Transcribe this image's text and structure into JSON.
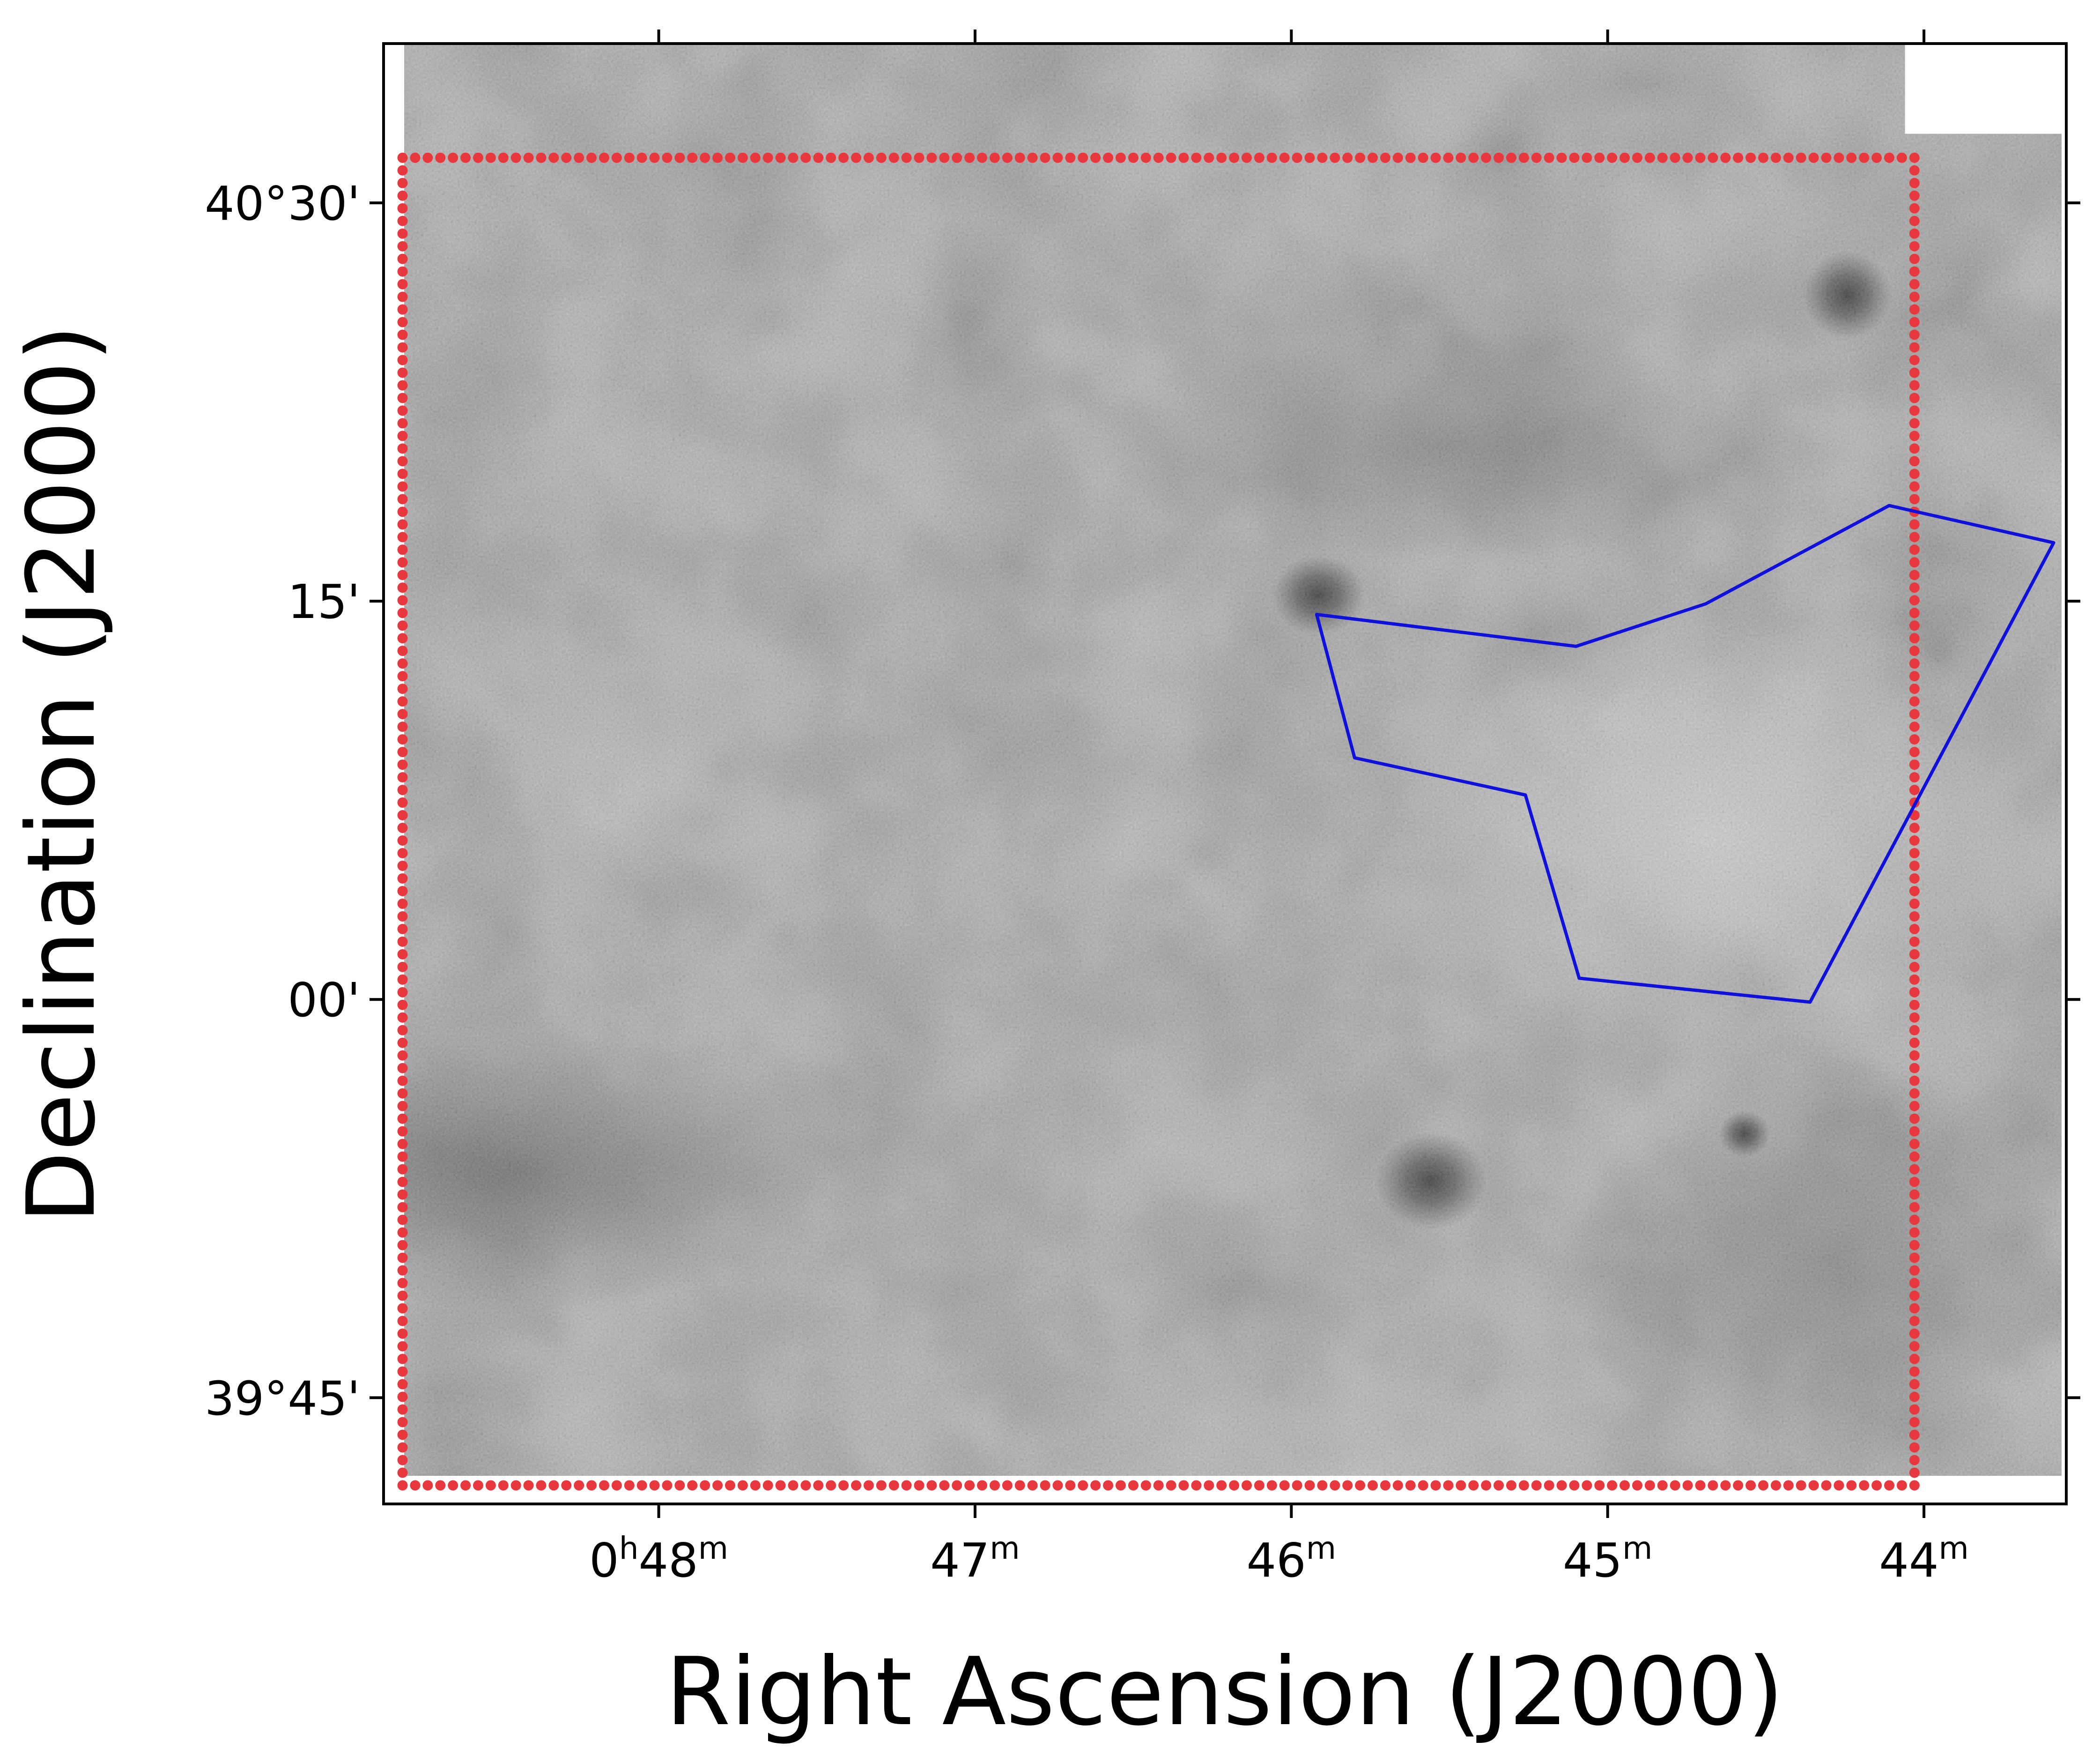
{
  "chart_data": {
    "type": "image",
    "colormap": "grayscale",
    "xlabel": "Right Ascension (J2000)",
    "ylabel": "Declination (J2000)",
    "x_axis_inverted": true,
    "xlim_ra_min": [
      48.87,
      43.55
    ],
    "ylim_dec_arcmin": [
      2381,
      2436
    ],
    "x_ticks": [
      {
        "value_ra_min": 48,
        "label_main": "0",
        "label_sup1": "h",
        "label_mid": "48",
        "label_sup2": "m"
      },
      {
        "value_ra_min": 47,
        "label_main": "",
        "label_sup1": "",
        "label_mid": "47",
        "label_sup2": "m"
      },
      {
        "value_ra_min": 46,
        "label_main": "",
        "label_sup1": "",
        "label_mid": "46",
        "label_sup2": "m"
      },
      {
        "value_ra_min": 45,
        "label_main": "",
        "label_sup1": "",
        "label_mid": "45",
        "label_sup2": "m"
      },
      {
        "value_ra_min": 44,
        "label_main": "",
        "label_sup1": "",
        "label_mid": "44",
        "label_sup2": "m"
      }
    ],
    "y_ticks": [
      {
        "value_dec_arcmin": 2430,
        "label": "40°30'"
      },
      {
        "value_dec_arcmin": 2415,
        "label": "15'"
      },
      {
        "value_dec_arcmin": 2400,
        "label": "00'"
      },
      {
        "value_dec_arcmin": 2385,
        "label": "39°45'"
      }
    ],
    "series": [
      {
        "type": "dotted-rectangle",
        "color": "#e8383d",
        "ra_min": [
          48.81,
          44.03
        ],
        "dec_arcmin": [
          2381.7,
          2431.7
        ]
      },
      {
        "type": "polygon",
        "color": "#1010dd",
        "points": [
          {
            "ra_min": 45.92,
            "dec_arcmin": 2414.5
          },
          {
            "ra_min": 45.1,
            "dec_arcmin": 2413.3
          },
          {
            "ra_min": 44.69,
            "dec_arcmin": 2414.9
          },
          {
            "ra_min": 44.11,
            "dec_arcmin": 2418.6
          },
          {
            "ra_min": 43.59,
            "dec_arcmin": 2417.2
          },
          {
            "ra_min": 44.36,
            "dec_arcmin": 2399.9
          },
          {
            "ra_min": 45.09,
            "dec_arcmin": 2400.8
          },
          {
            "ra_min": 45.26,
            "dec_arcmin": 2407.7
          },
          {
            "ra_min": 45.8,
            "dec_arcmin": 2409.1
          }
        ]
      }
    ],
    "image_blank_region": {
      "ra_min": [
        44.06,
        43.55
      ],
      "dec_arcmin": [
        2432.6,
        2436
      ]
    }
  }
}
